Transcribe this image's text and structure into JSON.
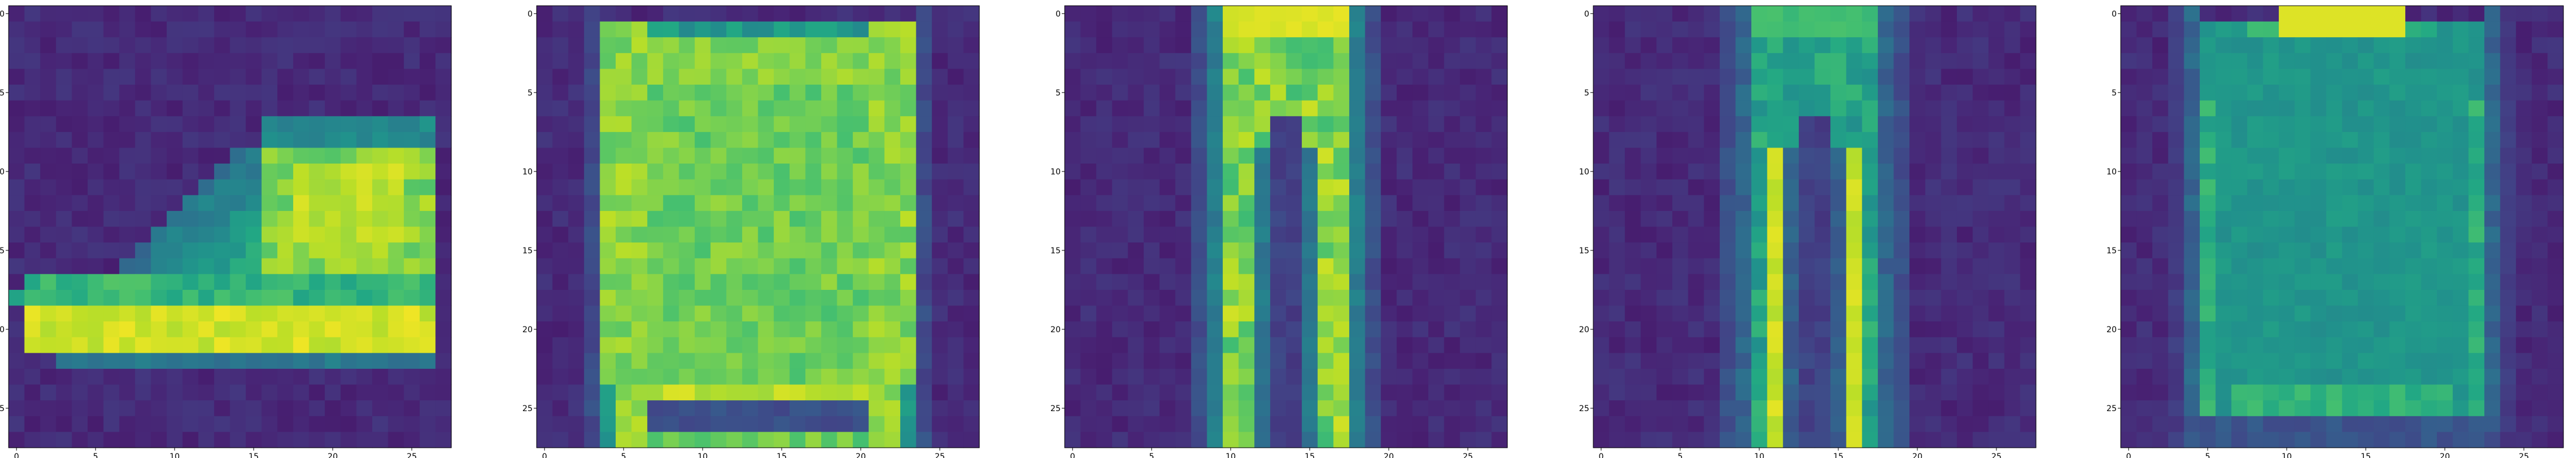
{
  "chart_data": [
    {
      "type": "heatmap",
      "colormap": "viridis",
      "grid": false,
      "value_range": [
        0,
        1
      ],
      "x_ticks": [
        "0",
        "5",
        "10",
        "15",
        "20",
        "25"
      ],
      "y_ticks": [
        "0",
        "5",
        "10",
        "15",
        "20",
        "25"
      ],
      "xlim": [
        0,
        27
      ],
      "ylim": [
        0,
        27
      ],
      "shape": "boot",
      "description": "",
      "rows": 28,
      "cols": 28
    },
    {
      "type": "heatmap",
      "colormap": "viridis",
      "grid": false,
      "value_range": [
        0,
        1
      ],
      "x_ticks": [
        "0",
        "5",
        "10",
        "15",
        "20",
        "25"
      ],
      "y_ticks": [
        "0",
        "5",
        "10",
        "15",
        "20",
        "25"
      ],
      "xlim": [
        0,
        27
      ],
      "ylim": [
        0,
        27
      ],
      "shape": "pullover",
      "rows": 28,
      "cols": 28
    },
    {
      "type": "heatmap",
      "colormap": "viridis",
      "grid": false,
      "value_range": [
        0,
        1
      ],
      "x_ticks": [
        "0",
        "5",
        "10",
        "15",
        "20",
        "25"
      ],
      "y_ticks": [
        "0",
        "5",
        "10",
        "15",
        "20",
        "25"
      ],
      "xlim": [
        0,
        27
      ],
      "ylim": [
        0,
        27
      ],
      "shape": "trouser",
      "rows": 28,
      "cols": 28
    },
    {
      "type": "heatmap",
      "colormap": "viridis",
      "grid": false,
      "value_range": [
        0,
        1
      ],
      "x_ticks": [
        "0",
        "5",
        "10",
        "15",
        "20",
        "25"
      ],
      "y_ticks": [
        "0",
        "5",
        "10",
        "15",
        "20",
        "25"
      ],
      "xlim": [
        0,
        27
      ],
      "ylim": [
        0,
        27
      ],
      "shape": "trouser-dim",
      "rows": 28,
      "cols": 28
    },
    {
      "type": "heatmap",
      "colormap": "viridis",
      "grid": false,
      "value_range": [
        0,
        1
      ],
      "x_ticks": [
        "0",
        "5",
        "10",
        "15",
        "20",
        "25"
      ],
      "y_ticks": [
        "0",
        "5",
        "10",
        "15",
        "20",
        "25"
      ],
      "xlim": [
        0,
        27
      ],
      "ylim": [
        0,
        27
      ],
      "shape": "shirt",
      "rows": 28,
      "cols": 28
    }
  ]
}
